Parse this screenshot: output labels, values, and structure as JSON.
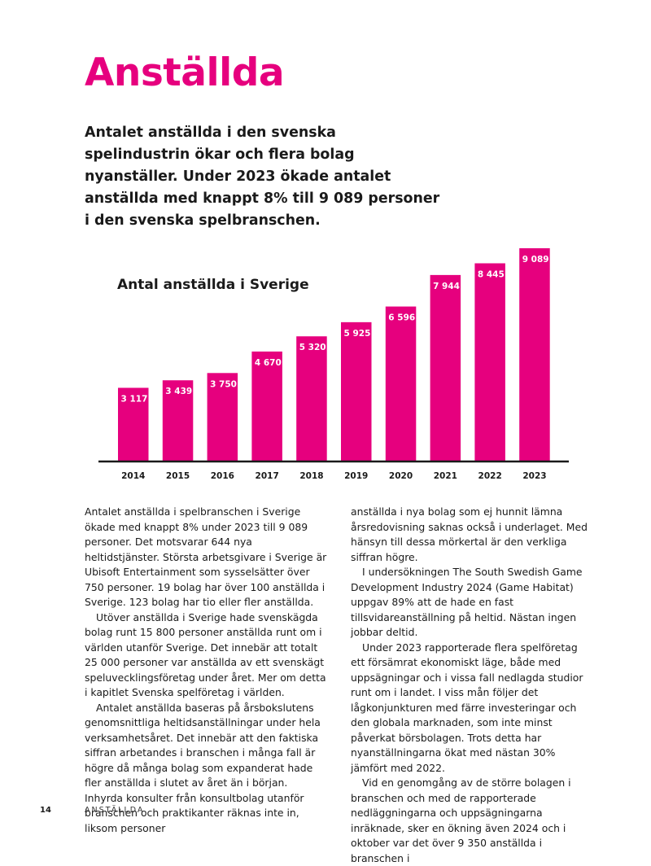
{
  "page": {
    "title": "Anställda",
    "lead": "Antalet anställda i den svenska spelindustrin ökar och flera bolag nyanställer. Under 2023 ökade antalet anställda med knappt 8% till 9 089 personer i den svenska spelbranschen.",
    "page_number": "14",
    "section_label": "ANSTÄLLDA"
  },
  "colors": {
    "accent": "#e6007e",
    "text": "#1a1a1a"
  },
  "chart_data": {
    "type": "bar",
    "title": "Antal anställda i Sverige",
    "categories": [
      "2014",
      "2015",
      "2016",
      "2017",
      "2018",
      "2019",
      "2020",
      "2021",
      "2022",
      "2023"
    ],
    "values": [
      3117,
      3439,
      3750,
      4670,
      5320,
      5925,
      6596,
      7944,
      8445,
      9089
    ],
    "value_labels": [
      "3 117",
      "3 439",
      "3 750",
      "4 670",
      "5 320",
      "5 925",
      "6 596",
      "7 944",
      "8 445",
      "9 089"
    ],
    "xlabel": "",
    "ylabel": "",
    "ylim": [
      0,
      9089
    ],
    "grid": false,
    "legend": "none",
    "color": "#e6007e"
  },
  "body": {
    "col1": [
      "Antalet anställda i spelbranschen i Sverige ökade med knappt 8% under 2023 till 9 089 personer. Det motsvarar 644 nya heltidstjänster. Största arbetsgivare i Sverige är Ubisoft Entertainment som sysselsätter över 750 personer. 19 bolag har över 100 anställda i Sverige. 123 bolag har tio eller fler anställda.",
      "Utöver anställda i Sverige hade svenskägda bolag runt 15 800 personer anställda runt om i världen utanför Sverige. Det innebär att totalt 25 000 personer var anställda av ett svenskägt speluvecklingsföretag under året. Mer om detta i kapitlet Svenska spelföretag i världen.",
      "Antalet anställda baseras på årsbokslutens genomsnittliga heltidsanställningar under hela verksamhetsåret. Det innebär att den faktiska siffran arbetandes i branschen i många fall är högre då många bolag som expanderat hade fler anställda i slutet av året än i början. Inhyrda konsulter från konsultbolag utanför branschen och praktikanter räknas inte in, liksom personer"
    ],
    "col2": [
      "anställda i nya bolag som ej hunnit lämna årsredovisning saknas också i underlaget. Med hänsyn till dessa mörkertal är den verkliga siffran högre.",
      "I undersökningen The South Swedish Game Development Industry 2024 (Game Habitat) uppgav 89% att de hade en fast tillsvidareanställning på heltid. Nästan ingen jobbar deltid.",
      "Under 2023 rapporterade flera spelföretag ett försämrat ekonomiskt läge, både med uppsägningar och i vissa fall nedlagda studior runt om i landet. I viss mån följer det lågkonjunkturen med färre investeringar och den globala marknaden, som inte minst påverkat börsbolagen. Trots detta har nyanställningarna ökat med nästan 30% jämfört med 2022.",
      "Vid en genomgång av de större bolagen i branschen och med de rapporterade nedläggningarna och uppsägningarna inräknade, sker en ökning även 2024 och i oktober var det över 9 350 anställda i branschen i"
    ]
  }
}
